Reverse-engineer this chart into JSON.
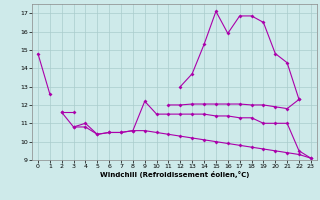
{
  "xlabel": "Windchill (Refroidissement éolien,°C)",
  "background_color": "#ceeaea",
  "grid_color": "#aacccc",
  "line_color": "#aa00aa",
  "hours": [
    0,
    1,
    2,
    3,
    4,
    5,
    6,
    7,
    8,
    9,
    10,
    11,
    12,
    13,
    14,
    15,
    16,
    17,
    18,
    19,
    20,
    21,
    22,
    23
  ],
  "series1": [
    14.8,
    12.6,
    null,
    null,
    null,
    null,
    null,
    null,
    null,
    null,
    null,
    null,
    13.0,
    13.7,
    15.3,
    17.1,
    15.9,
    16.85,
    16.85,
    16.5,
    14.8,
    14.3,
    12.3,
    null
  ],
  "series3": [
    null,
    null,
    11.6,
    11.6,
    null,
    null,
    null,
    null,
    null,
    null,
    null,
    12.0,
    12.0,
    12.05,
    12.05,
    12.05,
    12.05,
    12.05,
    12.0,
    12.0,
    11.9,
    11.8,
    12.3,
    null
  ],
  "series4": [
    null,
    null,
    11.6,
    10.8,
    11.0,
    10.4,
    10.5,
    10.5,
    10.6,
    12.2,
    11.5,
    11.5,
    11.5,
    11.5,
    11.5,
    11.4,
    11.4,
    11.3,
    11.3,
    11.0,
    11.0,
    11.0,
    9.5,
    9.1
  ],
  "series5": [
    null,
    null,
    null,
    10.8,
    10.8,
    10.4,
    10.5,
    10.5,
    10.6,
    10.6,
    10.5,
    10.4,
    10.3,
    10.2,
    10.1,
    10.0,
    9.9,
    9.8,
    9.7,
    9.6,
    9.5,
    9.4,
    9.3,
    9.1
  ],
  "ylim": [
    9,
    17.5
  ],
  "xlim": [
    -0.5,
    23.5
  ],
  "yticks": [
    9,
    10,
    11,
    12,
    13,
    14,
    15,
    16,
    17
  ],
  "xticks": [
    0,
    1,
    2,
    3,
    4,
    5,
    6,
    7,
    8,
    9,
    10,
    11,
    12,
    13,
    14,
    15,
    16,
    17,
    18,
    19,
    20,
    21,
    22,
    23
  ]
}
